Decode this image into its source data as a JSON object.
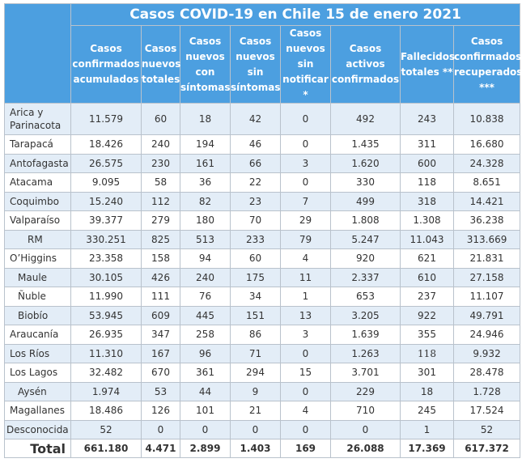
{
  "title": "Casos COVID-19 en Chile 15 de enero 2021",
  "headers": [
    "Casos confirmados acumulados",
    "Casos nuevos totales",
    "Casos nuevos con síntomas",
    "Casos nuevos sin síntomas",
    "Casos nuevos sin notificar *",
    "Casos activos confirmados",
    "Fallecidos totales **",
    "Casos confirmados recuperados ***"
  ],
  "rows": [
    {
      "region": "Arica y Parinacota",
      "values": [
        "11.579",
        "60",
        "18",
        "42",
        "0",
        "492",
        "243",
        "10.838"
      ]
    },
    {
      "region": "Tarapacá",
      "values": [
        "18.426",
        "240",
        "194",
        "46",
        "0",
        "1.435",
        "311",
        "16.680"
      ]
    },
    {
      "region": "Antofagasta",
      "values": [
        "26.575",
        "230",
        "161",
        "66",
        "3",
        "1.620",
        "600",
        "24.328"
      ]
    },
    {
      "region": "Atacama",
      "values": [
        "9.095",
        "58",
        "36",
        "22",
        "0",
        "330",
        "118",
        "8.651"
      ]
    },
    {
      "region": "Coquimbo",
      "values": [
        "15.240",
        "112",
        "82",
        "23",
        "7",
        "499",
        "318",
        "14.421"
      ]
    },
    {
      "region": "Valparaíso",
      "values": [
        "39.377",
        "279",
        "180",
        "70",
        "29",
        "1.808",
        "1.308",
        "36.238"
      ]
    },
    {
      "region": "RM",
      "values": [
        "330.251",
        "825",
        "513",
        "233",
        "79",
        "5.247",
        "11.043",
        "313.669"
      ]
    },
    {
      "region": "O’Higgins",
      "values": [
        "23.358",
        "158",
        "94",
        "60",
        "4",
        "920",
        "621",
        "21.831"
      ]
    },
    {
      "region": "Maule",
      "values": [
        "30.105",
        "426",
        "240",
        "175",
        "11",
        "2.337",
        "610",
        "27.158"
      ]
    },
    {
      "region": "Ñuble",
      "values": [
        "11.990",
        "111",
        "76",
        "34",
        "1",
        "653",
        "237",
        "11.107"
      ]
    },
    {
      "region": "Biobío",
      "values": [
        "53.945",
        "609",
        "445",
        "151",
        "13",
        "3.205",
        "922",
        "49.791"
      ]
    },
    {
      "region": "Araucanía",
      "values": [
        "26.935",
        "347",
        "258",
        "86",
        "3",
        "1.639",
        "355",
        "24.946"
      ]
    },
    {
      "region": "Los Ríos",
      "values": [
        "11.310",
        "167",
        "96",
        "71",
        "0",
        "1.263",
        "118",
        "9.932"
      ]
    },
    {
      "region": "Los Lagos",
      "values": [
        "32.482",
        "670",
        "361",
        "294",
        "15",
        "3.701",
        "301",
        "28.478"
      ]
    },
    {
      "region": "Aysén",
      "values": [
        "1.974",
        "53",
        "44",
        "9",
        "0",
        "229",
        "18",
        "1.728"
      ]
    },
    {
      "region": "Magallanes",
      "values": [
        "18.486",
        "126",
        "101",
        "21",
        "4",
        "710",
        "245",
        "17.524"
      ]
    },
    {
      "region": "Desconocida",
      "values": [
        "52",
        "0",
        "0",
        "0",
        "0",
        "0",
        "1",
        "52"
      ]
    }
  ],
  "total": {
    "label": "Total",
    "values": [
      "661.180",
      "4.471",
      "2.899",
      "1.403",
      "169",
      "26.088",
      "17.369",
      "617.372"
    ]
  }
}
